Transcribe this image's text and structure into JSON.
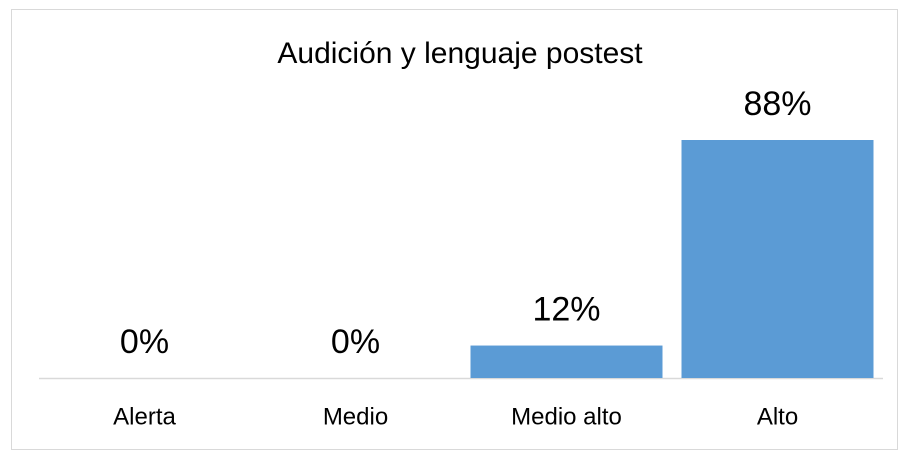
{
  "chart_data": {
    "type": "bar",
    "title": "Audición y lenguaje postest",
    "categories": [
      "Alerta",
      "Medio",
      "Medio alto",
      "Alto"
    ],
    "values": [
      0,
      0,
      12,
      88
    ],
    "value_labels": [
      "0%",
      "0%",
      "12%",
      "88%"
    ],
    "color": "#5b9bd5"
  }
}
